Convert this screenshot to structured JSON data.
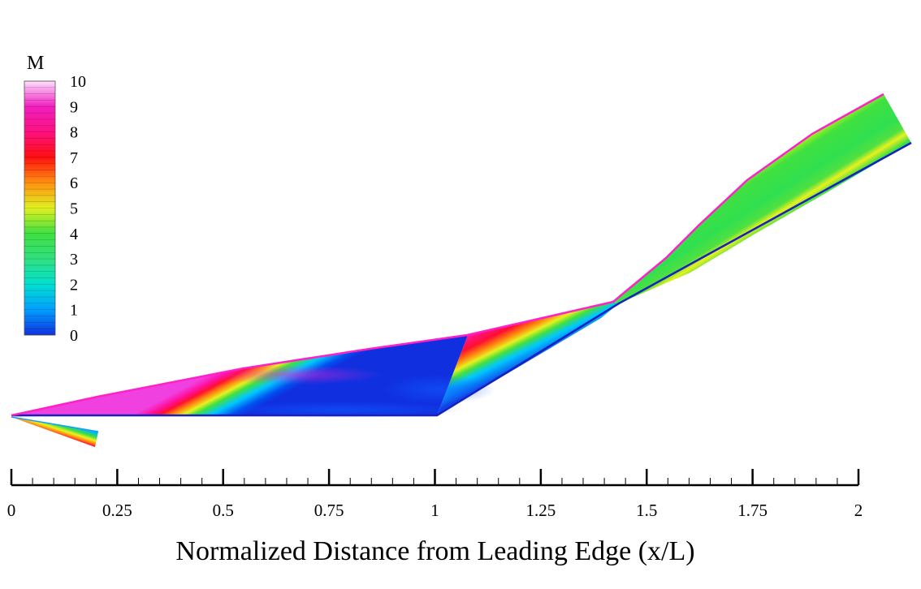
{
  "chart_data": {
    "type": "heatmap",
    "title": "",
    "xlabel": "Normalized Distance from Leading Edge (x/L)",
    "xlim": [
      0,
      2
    ],
    "x_ticks": [
      "0",
      "0.25",
      "0.5",
      "0.75",
      "1",
      "1.25",
      "1.5",
      "1.75",
      "2"
    ],
    "colorbar": {
      "title": "M",
      "range": [
        0,
        10
      ],
      "ticks": [
        "0",
        "1",
        "2",
        "3",
        "4",
        "5",
        "6",
        "7",
        "8",
        "9",
        "10"
      ],
      "colormap": [
        "#1030e0",
        "#00a0ff",
        "#00e0d0",
        "#30e080",
        "#40e040",
        "#e0f020",
        "#ff9010",
        "#ff1010",
        "#ff1080",
        "#f020c0",
        "#ffe0ff"
      ]
    },
    "geometry": {
      "leading_edge_x": 0,
      "ramp_start_x": 1.0,
      "shoulder_x": 1.43,
      "trailing_edge_x": 2.0
    },
    "grid": false,
    "legend": "left"
  }
}
